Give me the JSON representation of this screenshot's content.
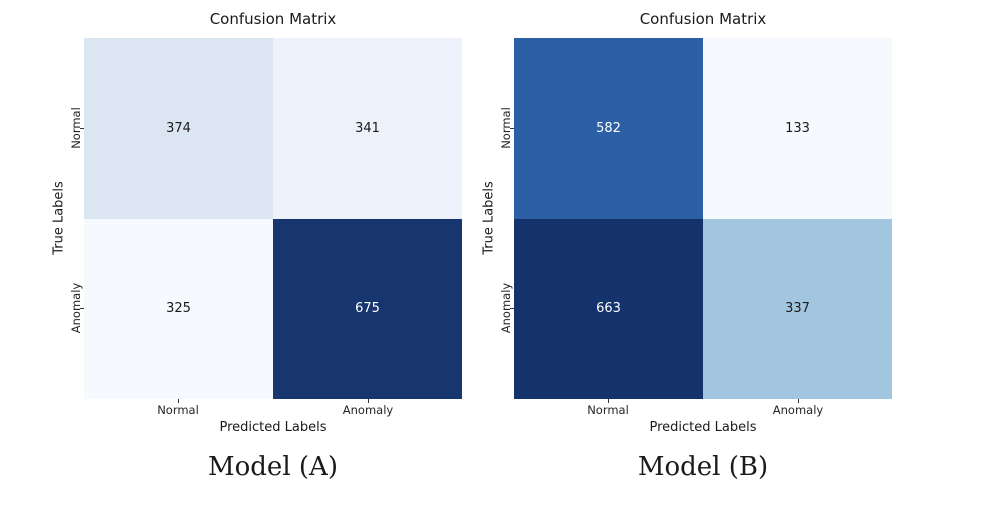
{
  "colors": {
    "background": "#ffffff",
    "text": "#1a1a1a",
    "tick": "#333333"
  },
  "chart_data": [
    {
      "type": "heatmap",
      "title": "Confusion Matrix",
      "caption": "Model (A)",
      "xlabel": "Predicted Labels",
      "ylabel": "True Labels",
      "x_categories": [
        "Normal",
        "Anomaly"
      ],
      "y_categories": [
        "Normal",
        "Anomaly"
      ],
      "matrix": [
        [
          374,
          341
        ],
        [
          325,
          675
        ]
      ],
      "cell_colors": [
        [
          "#dce6f2",
          "#edf2fa"
        ],
        [
          "#f6f9fd",
          "#17356e"
        ]
      ],
      "cell_text_colors": [
        [
          "#1a1a1a",
          "#1a1a1a"
        ],
        [
          "#1a1a1a",
          "#ffffff"
        ]
      ],
      "colormap": "Blues",
      "legend": "none",
      "grid": false
    },
    {
      "type": "heatmap",
      "title": "Confusion Matrix",
      "caption": "Model (B)",
      "xlabel": "Predicted Labels",
      "ylabel": "True Labels",
      "x_categories": [
        "Normal",
        "Anomaly"
      ],
      "y_categories": [
        "Normal",
        "Anomaly"
      ],
      "matrix": [
        [
          582,
          133
        ],
        [
          663,
          337
        ]
      ],
      "cell_colors": [
        [
          "#2d5fa5",
          "#f6f9fd"
        ],
        [
          "#14326b",
          "#a3c6e0"
        ]
      ],
      "cell_text_colors": [
        [
          "#ffffff",
          "#1a1a1a"
        ],
        [
          "#ffffff",
          "#1a1a1a"
        ]
      ],
      "colormap": "Blues",
      "legend": "none",
      "grid": false
    }
  ]
}
